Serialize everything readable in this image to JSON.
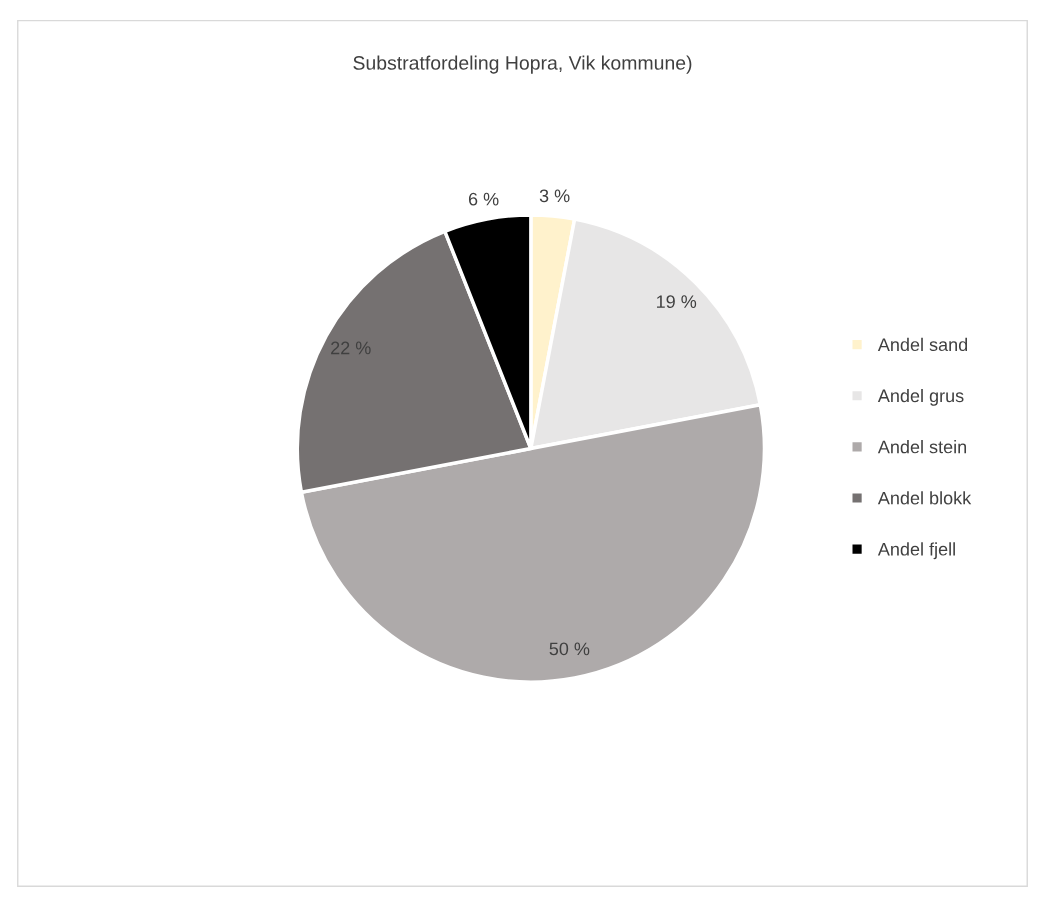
{
  "chart_data": {
    "type": "pie",
    "title": "Substratfordeling Hopra, Vik kommune)",
    "categories": [
      "Andel sand",
      "Andel grus",
      "Andel stein",
      "Andel blokk",
      "Andel fjell"
    ],
    "values": [
      3,
      19,
      50,
      22,
      6
    ],
    "colors": [
      "#fff2cc",
      "#e7e6e6",
      "#aeaaaa",
      "#757171",
      "#000000"
    ],
    "value_labels": [
      "3 %",
      "19 %",
      "50 %",
      "22 %",
      "6 %"
    ],
    "legend": "right"
  }
}
